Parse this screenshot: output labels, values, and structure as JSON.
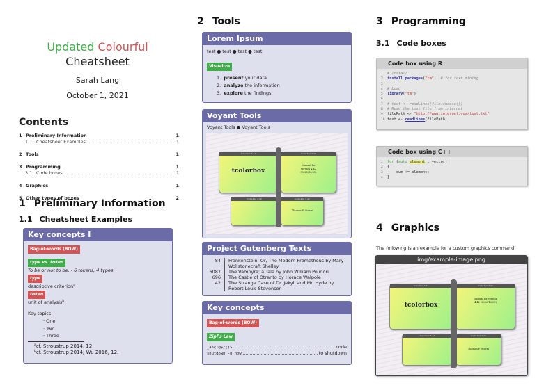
{
  "title": {
    "word1": "Updated",
    "word2": "Colourful",
    "line2": "Cheatsheet",
    "author": "Sarah Lang",
    "date": "October 1, 2021",
    "colors": {
      "word1": "#3fae49",
      "word2": "#d35454"
    }
  },
  "contents": {
    "heading": "Contents",
    "entries": [
      {
        "num": "1",
        "label": "Preliminary Information",
        "page": "1"
      },
      {
        "num": "1.1",
        "label": "Cheatsheet Examples",
        "page": "1"
      },
      {
        "num": "2",
        "label": "Tools",
        "page": "1"
      },
      {
        "num": "3",
        "label": "Programming",
        "page": "1"
      },
      {
        "num": "3.1",
        "label": "Code boxes",
        "page": "1"
      },
      {
        "num": "4",
        "label": "Graphics",
        "page": "1"
      },
      {
        "num": "5",
        "label": "Other types of boxes",
        "page": "2"
      }
    ]
  },
  "sections": {
    "s1": {
      "num": "1",
      "title": "Preliminary Information"
    },
    "s11": {
      "num": "1.1",
      "title": "Cheatsheet Examples"
    },
    "s2": {
      "num": "2",
      "title": "Tools"
    },
    "s3": {
      "num": "3",
      "title": "Programming"
    },
    "s31": {
      "num": "3.1",
      "title": "Code boxes"
    },
    "s4": {
      "num": "4",
      "title": "Graphics"
    }
  },
  "key_concepts_1": {
    "title": "Key concepts I",
    "bow": "Bag-of-words (BOW)",
    "tvt": "type vs. token",
    "tvt_text": "To be or not to be. - 6 tokens, 4 types.",
    "type": "type",
    "type_text": "descriptive criterion",
    "type_fn": "a",
    "token": "token",
    "token_text": "unit of analysis",
    "token_fn": "b",
    "topics_label": "Key topics",
    "topics": [
      "One",
      "Two",
      "Three"
    ],
    "footnotes": [
      {
        "mark": "a",
        "text": "cf. Stroustrup 2014, 12."
      },
      {
        "mark": "b",
        "text": "cf. Stroustrup 2014; Wu 2016, 12."
      }
    ]
  },
  "lorem": {
    "title": "Lorem Ipsum",
    "items": [
      "test",
      "test",
      "test",
      "test"
    ],
    "tag": "Visualize",
    "list": [
      {
        "bold": "present",
        "rest": " your data"
      },
      {
        "bold": "analyze",
        "rest": " the information"
      },
      {
        "bold": "explore",
        "rest": " the findings"
      }
    ]
  },
  "voyant": {
    "title": "Voyant Tools",
    "items": [
      "Voyant Tools",
      "Voyant Tools"
    ]
  },
  "cover": {
    "big": "tcolorbox",
    "manual": "Manual for version 4.42 (2020/10/09)",
    "author": "Thomas F. Sturm",
    "wing_label": "tcolorbox 4.42"
  },
  "gutenberg": {
    "title": "Project Gutenberg Texts",
    "rows": [
      {
        "n": "84",
        "t": "Frankenstein; Or, The Modern Prometheus by Mary Wollstonecraft Shelley"
      },
      {
        "n": "6087",
        "t": "The Vampyre; a Tale by John William Polidori"
      },
      {
        "n": "696",
        "t": "The Castle of Otranto by Horace Walpole"
      },
      {
        "n": "42",
        "t": "The Strange Case of Dr. Jekyll and Mr. Hyde by Robert Louis Stevenson"
      }
    ]
  },
  "key_concepts_2": {
    "title": "Key concepts",
    "bow": "Bag-of-words (BOW)",
    "zipf": "Zipf's Law",
    "rows": [
      {
        "code": "_äßç!@$/()$",
        "desc": "code"
      },
      {
        "code": "shutdown -h now",
        "desc": "to shutdown"
      }
    ]
  },
  "code_r": {
    "title": "Code box using R"
  },
  "code_cpp": {
    "title": "Code box using C++"
  },
  "graphics": {
    "text": "The following is an example for a custom graphics command",
    "caption": "img/example-image.png"
  }
}
